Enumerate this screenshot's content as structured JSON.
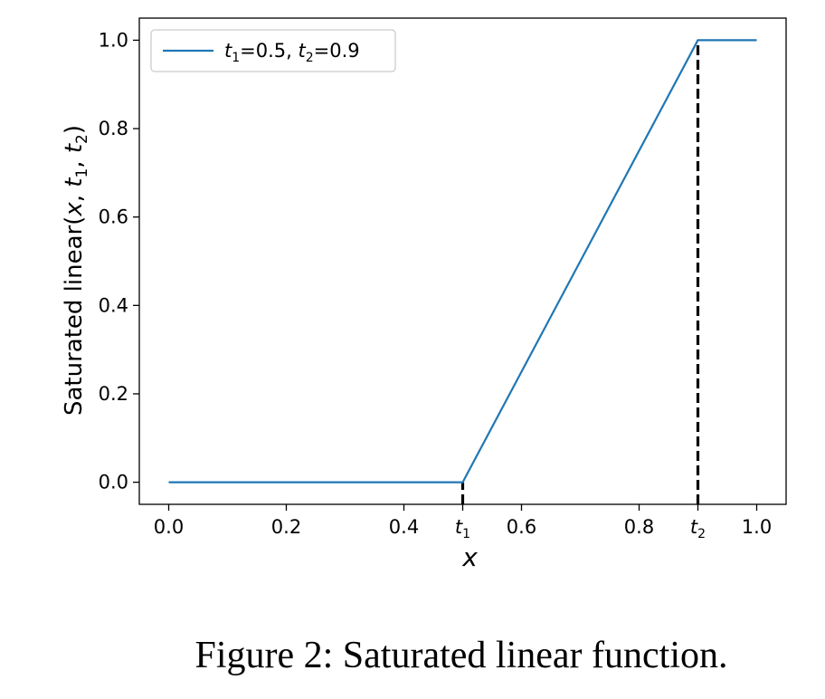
{
  "chart_data": {
    "type": "line",
    "title": "",
    "xlabel": "x",
    "ylabel_prefix": "Saturated linear",
    "xlim": [
      -0.05,
      1.05
    ],
    "ylim": [
      -0.05,
      1.05
    ],
    "x_ticks": [
      {
        "value": 0.0,
        "label": "0.0"
      },
      {
        "value": 0.2,
        "label": "0.2"
      },
      {
        "value": 0.4,
        "label": "0.4"
      },
      {
        "value": 0.5,
        "label": "t",
        "sub": "1"
      },
      {
        "value": 0.6,
        "label": "0.6"
      },
      {
        "value": 0.8,
        "label": "0.8"
      },
      {
        "value": 0.9,
        "label": "t",
        "sub": "2"
      },
      {
        "value": 1.0,
        "label": "1.0"
      }
    ],
    "y_ticks": [
      {
        "value": 0.0,
        "label": "0.0"
      },
      {
        "value": 0.2,
        "label": "0.2"
      },
      {
        "value": 0.4,
        "label": "0.4"
      },
      {
        "value": 0.6,
        "label": "0.6"
      },
      {
        "value": 0.8,
        "label": "0.8"
      },
      {
        "value": 1.0,
        "label": "1.0"
      }
    ],
    "series": [
      {
        "name": "t1=0.5, t2=0.9",
        "color": "#1f77b4",
        "x": [
          0.0,
          0.5,
          0.9,
          1.0
        ],
        "y": [
          0.0,
          0.0,
          1.0,
          1.0
        ]
      }
    ],
    "vlines": [
      {
        "x": 0.5,
        "y0": -0.05,
        "y1": 0.0,
        "style": "dashed",
        "color": "#000000"
      },
      {
        "x": 0.9,
        "y0": -0.05,
        "y1": 1.0,
        "style": "dashed",
        "color": "#000000"
      }
    ],
    "legend": {
      "position": "top-left"
    },
    "grid": false
  },
  "caption": "Figure 2: Saturated linear function."
}
